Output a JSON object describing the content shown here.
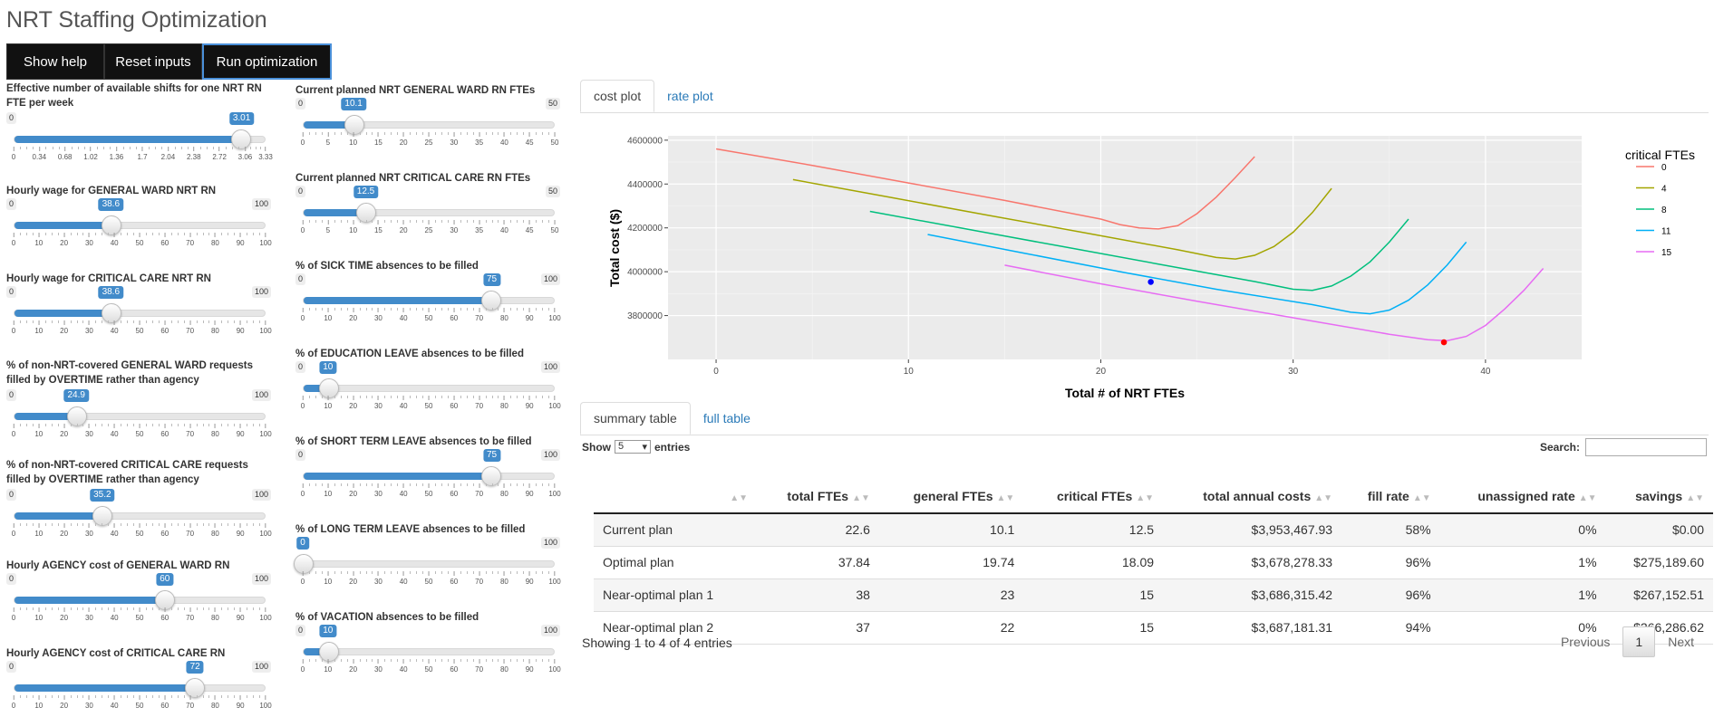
{
  "app_title": "NRT Staffing Optimization",
  "buttons": {
    "help": "Show help",
    "reset": "Reset inputs",
    "run": "Run optimization"
  },
  "left_col": [
    {
      "label": "Effective number of available shifts for one NRT RN FTE per week",
      "min": "0",
      "max": "",
      "value": "3.01",
      "frac": 0.905,
      "ticks": [
        "0",
        "0.34",
        "0.68",
        "1.02",
        "1.36",
        "1.7",
        "2.04",
        "2.38",
        "2.72",
        "3.06",
        "3.33"
      ],
      "tick_pos": [
        0,
        0.102,
        0.204,
        0.306,
        0.408,
        0.511,
        0.613,
        0.715,
        0.817,
        0.919,
        1
      ]
    },
    {
      "label": "Hourly wage for GENERAL WARD NRT RN",
      "min": "0",
      "max": "100",
      "value": "38.6",
      "frac": 0.386,
      "ticks": [
        "0",
        "10",
        "20",
        "30",
        "40",
        "50",
        "60",
        "70",
        "80",
        "90",
        "100"
      ]
    },
    {
      "label": "Hourly wage for CRITICAL CARE NRT RN",
      "min": "0",
      "max": "100",
      "value": "38.6",
      "frac": 0.386,
      "ticks": [
        "0",
        "10",
        "20",
        "30",
        "40",
        "50",
        "60",
        "70",
        "80",
        "90",
        "100"
      ]
    },
    {
      "label": "% of non-NRT-covered GENERAL WARD requests filled by OVERTIME rather than agency",
      "min": "0",
      "max": "100",
      "value": "24.9",
      "frac": 0.249,
      "ticks": [
        "0",
        "10",
        "20",
        "30",
        "40",
        "50",
        "60",
        "70",
        "80",
        "90",
        "100"
      ]
    },
    {
      "label": "% of non-NRT-covered CRITICAL CARE requests filled by OVERTIME rather than agency",
      "min": "0",
      "max": "100",
      "value": "35.2",
      "frac": 0.352,
      "ticks": [
        "0",
        "10",
        "20",
        "30",
        "40",
        "50",
        "60",
        "70",
        "80",
        "90",
        "100"
      ]
    },
    {
      "label": "Hourly AGENCY cost of GENERAL WARD RN",
      "min": "0",
      "max": "100",
      "value": "60",
      "frac": 0.6,
      "ticks": [
        "0",
        "10",
        "20",
        "30",
        "40",
        "50",
        "60",
        "70",
        "80",
        "90",
        "100"
      ]
    },
    {
      "label": "Hourly AGENCY cost of CRITICAL CARE RN",
      "min": "0",
      "max": "100",
      "value": "72",
      "frac": 0.72,
      "ticks": [
        "0",
        "10",
        "20",
        "30",
        "40",
        "50",
        "60",
        "70",
        "80",
        "90",
        "100"
      ]
    }
  ],
  "mid_col": [
    {
      "label": "Current planned NRT GENERAL WARD RN FTEs",
      "min": "0",
      "max": "50",
      "value": "10.1",
      "frac": 0.202,
      "ticks": [
        "0",
        "5",
        "10",
        "15",
        "20",
        "25",
        "30",
        "35",
        "40",
        "45",
        "50"
      ]
    },
    {
      "label": "Current planned NRT CRITICAL CARE RN FTEs",
      "min": "0",
      "max": "50",
      "value": "12.5",
      "frac": 0.25,
      "ticks": [
        "0",
        "5",
        "10",
        "15",
        "20",
        "25",
        "30",
        "35",
        "40",
        "45",
        "50"
      ]
    },
    {
      "label": "% of SICK TIME absences to be filled",
      "min": "0",
      "max": "100",
      "value": "75",
      "frac": 0.75,
      "ticks": [
        "0",
        "10",
        "20",
        "30",
        "40",
        "50",
        "60",
        "70",
        "80",
        "90",
        "100"
      ]
    },
    {
      "label": "% of EDUCATION LEAVE absences to be filled",
      "min": "0",
      "max": "100",
      "value": "10",
      "frac": 0.1,
      "ticks": [
        "0",
        "10",
        "20",
        "30",
        "40",
        "50",
        "60",
        "70",
        "80",
        "90",
        "100"
      ]
    },
    {
      "label": "% of SHORT TERM LEAVE absences to be filled",
      "min": "0",
      "max": "100",
      "value": "75",
      "frac": 0.75,
      "ticks": [
        "0",
        "10",
        "20",
        "30",
        "40",
        "50",
        "60",
        "70",
        "80",
        "90",
        "100"
      ]
    },
    {
      "label": "% of LONG TERM LEAVE absences to be filled",
      "min": "",
      "max": "100",
      "value": "0",
      "frac": 0,
      "ticks": [
        "0",
        "10",
        "20",
        "30",
        "40",
        "50",
        "60",
        "70",
        "80",
        "90",
        "100"
      ]
    },
    {
      "label": "% of VACATION absences to be filled",
      "min": "0",
      "max": "100",
      "value": "10",
      "frac": 0.1,
      "ticks": [
        "0",
        "10",
        "20",
        "30",
        "40",
        "50",
        "60",
        "70",
        "80",
        "90",
        "100"
      ]
    }
  ],
  "plot_tabs": [
    "cost plot",
    "rate plot"
  ],
  "table_tabs": [
    "summary table",
    "full table"
  ],
  "accent_color": "#428bca",
  "chart_data": {
    "type": "line",
    "xlabel": "Total # of NRT FTEs",
    "ylabel": "Total cost ($)",
    "xlim": [
      -2.5,
      45
    ],
    "ylim": [
      3600000,
      4620000
    ],
    "xticks": [
      0,
      10,
      20,
      30,
      40
    ],
    "yticks": [
      3800000,
      4000000,
      4200000,
      4400000,
      4600000
    ],
    "ytick_labels": [
      "3800000",
      "4000000",
      "4200000",
      "4400000",
      "4600000"
    ],
    "legend_title": "critical FTEs",
    "legend_position": "right",
    "series": [
      {
        "name": "0",
        "color": "#f8766d",
        "x": [
          0,
          5,
          10,
          15,
          20,
          21,
          22,
          23,
          24,
          25,
          26,
          27,
          28
        ],
        "y": [
          4560000,
          4485000,
          4405000,
          4325000,
          4240000,
          4215000,
          4200000,
          4195000,
          4210000,
          4265000,
          4340000,
          4430000,
          4525000
        ]
      },
      {
        "name": "4",
        "color": "#a3a500",
        "x": [
          4,
          9,
          14,
          19,
          24,
          26,
          27,
          28,
          29,
          30,
          31,
          32
        ],
        "y": [
          4420000,
          4340000,
          4260000,
          4180000,
          4100000,
          4065000,
          4058000,
          4075000,
          4115000,
          4180000,
          4270000,
          4380000
        ]
      },
      {
        "name": "8",
        "color": "#00bf7d",
        "x": [
          8,
          13,
          18,
          23,
          28,
          30,
          31,
          32,
          33,
          34,
          35,
          36
        ],
        "y": [
          4275000,
          4195000,
          4115000,
          4035000,
          3955000,
          3920000,
          3915000,
          3935000,
          3980000,
          4045000,
          4135000,
          4240000
        ]
      },
      {
        "name": "11",
        "color": "#00b0f6",
        "x": [
          11,
          16,
          21,
          26,
          31,
          33,
          34,
          35,
          36,
          37,
          38,
          39
        ],
        "y": [
          4170000,
          4085000,
          4000000,
          3920000,
          3850000,
          3815000,
          3808000,
          3825000,
          3870000,
          3940000,
          4030000,
          4135000
        ]
      },
      {
        "name": "15",
        "color": "#e76bf3",
        "x": [
          15,
          20,
          25,
          30,
          35,
          37,
          38,
          39,
          40,
          41,
          42,
          43
        ],
        "y": [
          4030000,
          3945000,
          3865000,
          3790000,
          3715000,
          3690000,
          3685000,
          3705000,
          3755000,
          3830000,
          3915000,
          4015000
        ]
      }
    ],
    "points": [
      {
        "label": "Current plan",
        "x": 22.6,
        "y": 3953468,
        "color": "#0000ff"
      },
      {
        "label": "Optimal plan",
        "x": 37.84,
        "y": 3678278,
        "color": "#ff0000"
      }
    ]
  },
  "table": {
    "show_label": "Show",
    "entries_label": "entries",
    "page_size": "5",
    "search_label": "Search:",
    "columns": [
      "",
      "total FTEs",
      "general FTEs",
      "critical FTEs",
      "total annual costs",
      "fill rate",
      "unassigned rate",
      "savings"
    ],
    "rows": [
      [
        "Current plan",
        "22.6",
        "10.1",
        "12.5",
        "$3,953,467.93",
        "58%",
        "0%",
        "$0.00"
      ],
      [
        "Optimal plan",
        "37.84",
        "19.74",
        "18.09",
        "$3,678,278.33",
        "96%",
        "1%",
        "$275,189.60"
      ],
      [
        "Near-optimal plan 1",
        "38",
        "23",
        "15",
        "$3,686,315.42",
        "96%",
        "1%",
        "$267,152.51"
      ],
      [
        "Near-optimal plan 2",
        "37",
        "22",
        "15",
        "$3,687,181.31",
        "94%",
        "0%",
        "$266,286.62"
      ]
    ],
    "info": "Showing 1 to 4 of 4 entries",
    "pager": {
      "prev": "Previous",
      "current": "1",
      "next": "Next"
    }
  }
}
